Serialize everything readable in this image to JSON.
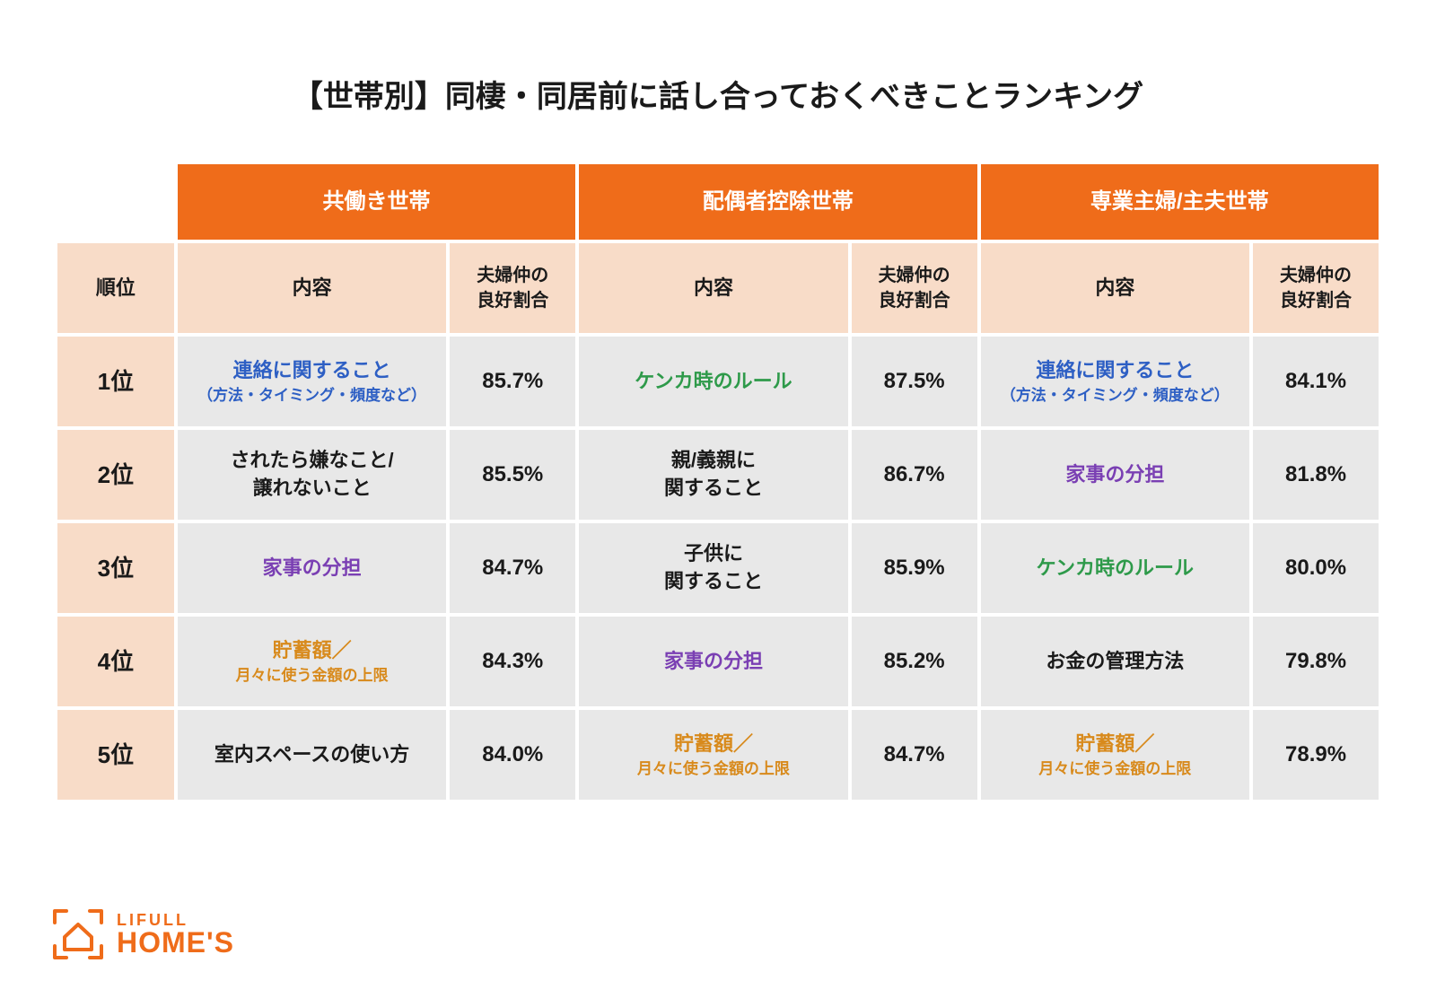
{
  "colors": {
    "orange": "#ef6c1a",
    "peach": "#f8dcc8",
    "row_grey": "#e8e8e8",
    "text_black": "#1a1a1a",
    "text_blue": "#2d5fc4",
    "text_green": "#2e9a4a",
    "text_purple": "#7a3fb3",
    "text_amber": "#d88a1c"
  },
  "title": "【世帯別】同棲・同居前に話し合っておくべきことランキング",
  "group_headers": [
    "共働き世帯",
    "配偶者控除世帯",
    "専業主婦/主夫世帯"
  ],
  "sub_headers": {
    "rank": "順位",
    "naiyou": "内容",
    "ratio": "夫婦仲の\n良好割合"
  },
  "rows": [
    {
      "rank": "1位",
      "cols": [
        {
          "main": "連絡に関すること",
          "sub": "（方法・タイミング・頻度など）",
          "color": "text_blue",
          "ratio": "85.7%"
        },
        {
          "main": "ケンカ時のルール",
          "sub": "",
          "color": "text_green",
          "ratio": "87.5%"
        },
        {
          "main": "連絡に関すること",
          "sub": "（方法・タイミング・頻度など）",
          "color": "text_blue",
          "ratio": "84.1%"
        }
      ]
    },
    {
      "rank": "2位",
      "cols": [
        {
          "main": "されたら嫌なこと/",
          "sub": "譲れないこと",
          "subsize": "same",
          "color": "text_black",
          "ratio": "85.5%"
        },
        {
          "main": "親/義親に",
          "sub": "関すること",
          "subsize": "same",
          "color": "text_black",
          "ratio": "86.7%"
        },
        {
          "main": "家事の分担",
          "sub": "",
          "color": "text_purple",
          "ratio": "81.8%"
        }
      ]
    },
    {
      "rank": "3位",
      "cols": [
        {
          "main": "家事の分担",
          "sub": "",
          "color": "text_purple",
          "ratio": "84.7%"
        },
        {
          "main": "子供に",
          "sub": "関すること",
          "subsize": "same",
          "color": "text_black",
          "ratio": "85.9%"
        },
        {
          "main": "ケンカ時のルール",
          "sub": "",
          "color": "text_green",
          "ratio": "80.0%"
        }
      ]
    },
    {
      "rank": "4位",
      "cols": [
        {
          "main": "貯蓄額／",
          "sub": "月々に使う金額の上限",
          "color": "text_amber",
          "ratio": "84.3%"
        },
        {
          "main": "家事の分担",
          "sub": "",
          "color": "text_purple",
          "ratio": "85.2%"
        },
        {
          "main": "お金の管理方法",
          "sub": "",
          "color": "text_black",
          "ratio": "79.8%"
        }
      ]
    },
    {
      "rank": "5位",
      "cols": [
        {
          "main": "室内スペースの使い方",
          "sub": "",
          "color": "text_black",
          "ratio": "84.0%"
        },
        {
          "main": "貯蓄額／",
          "sub": "月々に使う金額の上限",
          "color": "text_amber",
          "ratio": "84.7%"
        },
        {
          "main": "貯蓄額／",
          "sub": "月々に使う金額の上限",
          "color": "text_amber",
          "ratio": "78.9%"
        }
      ]
    }
  ],
  "logo": {
    "line1": "LIFULL",
    "line2": "HOME'S",
    "color": "#ef6c1a"
  }
}
